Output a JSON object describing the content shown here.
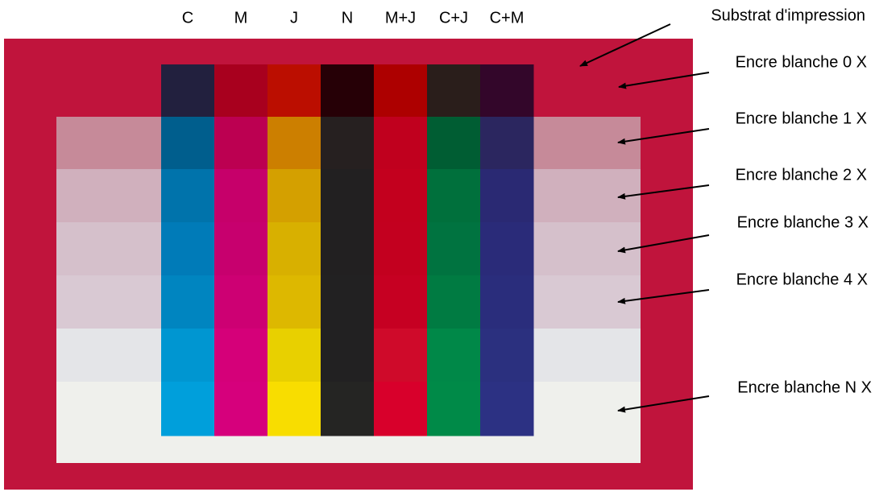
{
  "columns": [
    "C",
    "M",
    "J",
    "N",
    "M+J",
    "C+J",
    "C+M"
  ],
  "annotations": [
    "Substrat d'impression",
    "Encre blanche 0 X",
    "Encre blanche 1 X",
    "Encre blanche 2 X",
    "Encre blanche 3 X",
    "Encre blanche 4 X",
    "Encre blanche N X"
  ]
}
